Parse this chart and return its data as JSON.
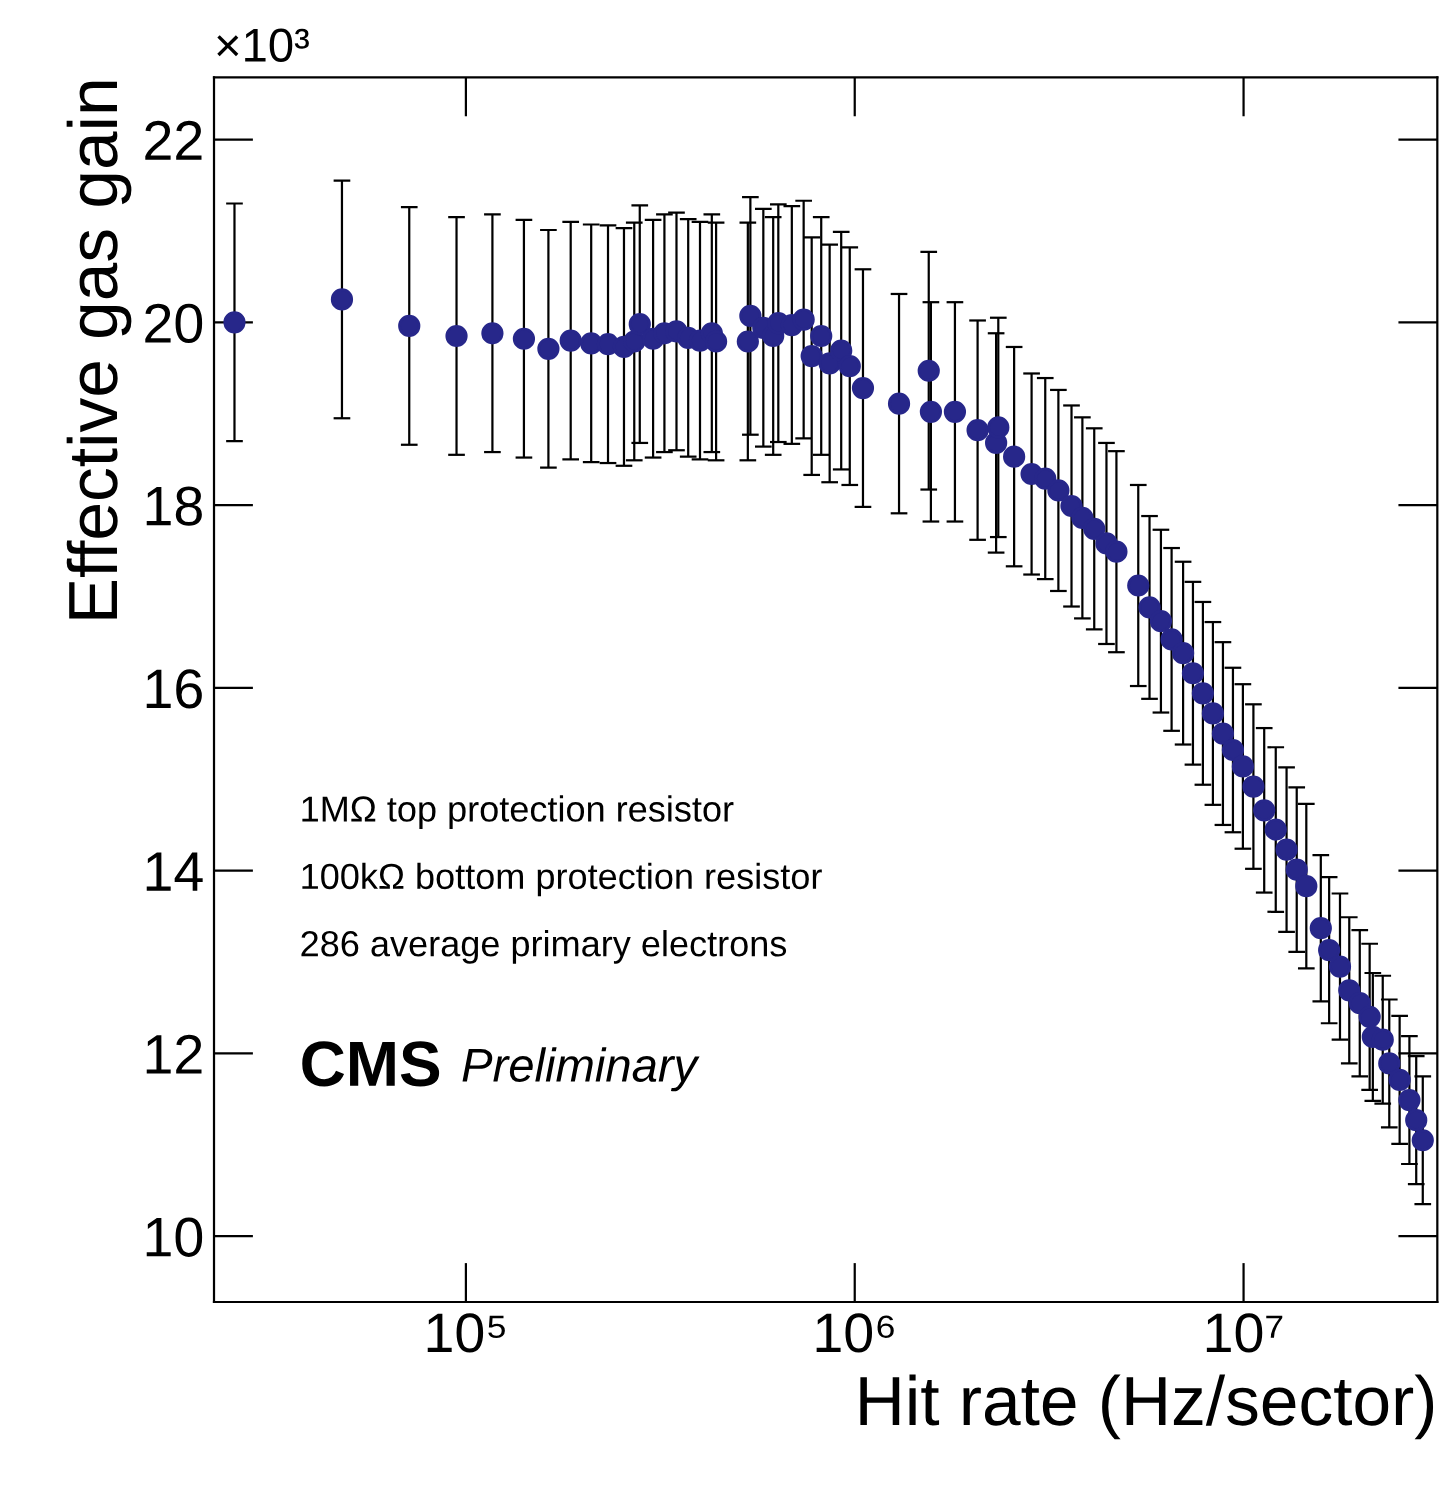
{
  "chart_data": {
    "type": "scatter",
    "xlabel": "Hit rate (Hz/sector)",
    "ylabel": "Effective gas gain",
    "annotations": [
      "×10³",
      "1MΩ top protection resistor",
      "100kΩ bottom protection resistor",
      "286 average primary electrons",
      "CMS",
      "Preliminary"
    ],
    "log": "x",
    "xlim": [
      22500,
      31500000
    ],
    "xticks": [
      {
        "value": 100000,
        "label": "10⁵"
      },
      {
        "value": 1000000,
        "label": "10⁶"
      },
      {
        "value": 10000000,
        "label": "10⁷"
      }
    ],
    "ylim": [
      9.28,
      22.68
    ],
    "yticks": [
      10,
      12,
      14,
      16,
      18,
      20,
      22
    ],
    "grid": false,
    "marker": "circle",
    "series": [
      {
        "color": "#27278a",
        "x": [
          25400,
          48000,
          71500,
          94600,
          117000,
          141000,
          163000,
          186000,
          210000,
          232000,
          255000,
          271000,
          280000,
          303000,
          324000,
          348000,
          373000,
          400000,
          429000,
          440000,
          531000,
          539000,
          582000,
          617000,
          636000,
          689000,
          739000,
          775000,
          820000,
          862000,
          923000,
          971000,
          1050000,
          1300000,
          1550000,
          1570000,
          1810000,
          2070000,
          2310000,
          2340000,
          2570000,
          2850000,
          3090000,
          3340000,
          3610000,
          3850000,
          4130000,
          4440000,
          4710000,
          5360000,
          5730000,
          6130000,
          6530000,
          6990000,
          7410000,
          7860000,
          8340000,
          8850000,
          9390000,
          9960000,
          10600000,
          11300000,
          12100000,
          12900000,
          13700000,
          14500000,
          15800000,
          16600000,
          17700000,
          18700000,
          19900000,
          21100000,
          21500000,
          22800000,
          23700000,
          25200000,
          26700000,
          27800000,
          28900000
        ],
        "values": [
          20.0,
          20.25,
          19.96,
          19.85,
          19.88,
          19.82,
          19.71,
          19.8,
          19.77,
          19.76,
          19.73,
          19.79,
          19.98,
          19.82,
          19.88,
          19.9,
          19.83,
          19.8,
          19.88,
          19.79,
          19.79,
          20.07,
          19.94,
          19.85,
          19.99,
          19.97,
          20.03,
          19.63,
          19.85,
          19.55,
          19.69,
          19.52,
          19.28,
          19.11,
          19.47,
          19.02,
          19.02,
          18.82,
          18.68,
          18.85,
          18.53,
          18.34,
          18.29,
          18.16,
          17.99,
          17.86,
          17.74,
          17.58,
          17.49,
          17.12,
          16.88,
          16.73,
          16.53,
          16.38,
          16.16,
          15.94,
          15.72,
          15.5,
          15.32,
          15.14,
          14.92,
          14.66,
          14.45,
          14.23,
          14.01,
          13.83,
          13.37,
          13.13,
          12.95,
          12.69,
          12.55,
          12.4,
          12.18,
          12.15,
          11.89,
          11.71,
          11.49,
          11.27,
          11.05
        ],
        "errors": [
          1.3,
          1.3,
          1.3,
          1.3,
          1.3,
          1.3,
          1.3,
          1.3,
          1.3,
          1.3,
          1.3,
          1.3,
          1.3,
          1.3,
          1.3,
          1.3,
          1.3,
          1.3,
          1.3,
          1.3,
          1.3,
          1.3,
          1.3,
          1.3,
          1.3,
          1.3,
          1.3,
          1.3,
          1.3,
          1.3,
          1.3,
          1.3,
          1.3,
          1.2,
          1.3,
          1.2,
          1.2,
          1.2,
          1.2,
          1.2,
          1.2,
          1.1,
          1.1,
          1.1,
          1.1,
          1.1,
          1.1,
          1.1,
          1.1,
          1.1,
          1.0,
          1.0,
          1.0,
          1.0,
          1.0,
          1.0,
          1.0,
          1.0,
          0.9,
          0.9,
          0.9,
          0.9,
          0.9,
          0.9,
          0.9,
          0.9,
          0.8,
          0.8,
          0.8,
          0.8,
          0.8,
          0.8,
          0.7,
          0.7,
          0.7,
          0.7,
          0.7,
          0.7,
          0.7
        ]
      }
    ]
  }
}
